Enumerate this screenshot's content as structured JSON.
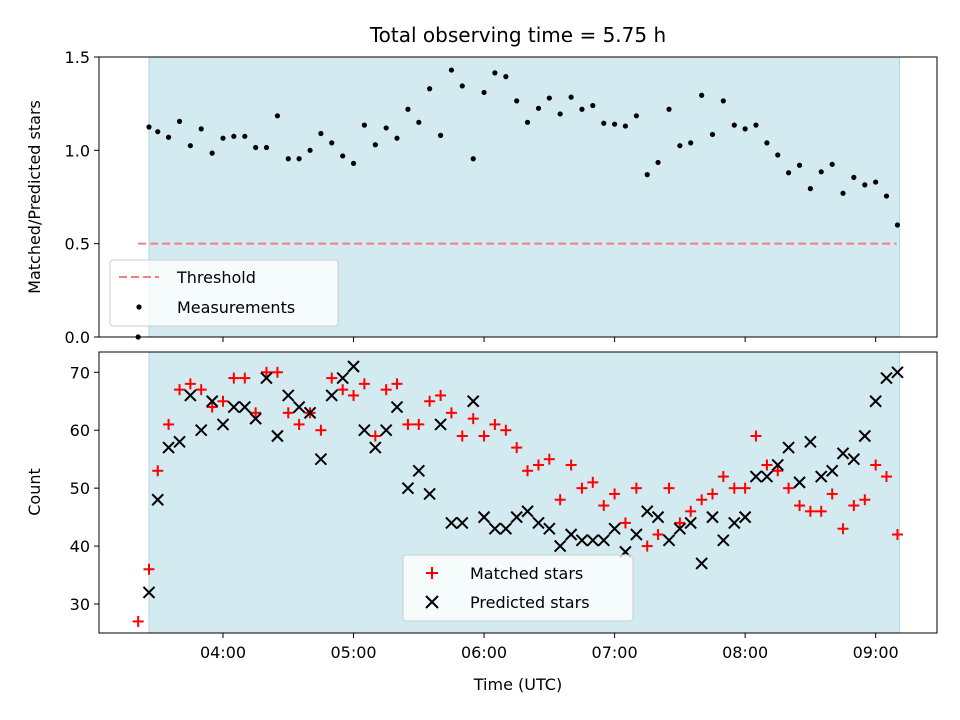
{
  "chart_data": [
    {
      "type": "scatter",
      "title": "Total observing time = 5.75 h",
      "xlabel": "",
      "ylabel": "Matched/Predicted stars",
      "ylim": [
        0,
        1.5
      ],
      "y_ticks": [
        "0.0",
        "0.5",
        "1.0",
        "1.5"
      ],
      "x_range_hours": [
        3.05,
        9.47
      ],
      "observing_window_hours": [
        3.433,
        9.183
      ],
      "shade_color": "#d3eaf1",
      "legend_position": "lower-left",
      "series": [
        {
          "name": "Threshold",
          "kind": "hline",
          "y": 0.5,
          "x_start_hours": 3.35,
          "x_end_hours": 9.16,
          "color": "#f08080",
          "style": "dashed"
        },
        {
          "name": "Measurements",
          "kind": "points",
          "color": "#000000",
          "x_hours": [
            3.35,
            3.433,
            3.5,
            3.583,
            3.667,
            3.75,
            3.833,
            3.917,
            4.0,
            4.083,
            4.167,
            4.25,
            4.333,
            4.417,
            4.5,
            4.583,
            4.667,
            4.75,
            4.833,
            4.917,
            5.0,
            5.083,
            5.167,
            5.25,
            5.333,
            5.417,
            5.5,
            5.583,
            5.667,
            5.75,
            5.833,
            5.917,
            6.0,
            6.083,
            6.167,
            6.25,
            6.333,
            6.417,
            6.5,
            6.583,
            6.667,
            6.75,
            6.833,
            6.917,
            7.0,
            7.083,
            7.167,
            7.25,
            7.333,
            7.417,
            7.5,
            7.583,
            7.667,
            7.75,
            7.833,
            7.917,
            8.0,
            8.083,
            8.167,
            8.25,
            8.333,
            8.417,
            8.5,
            8.583,
            8.667,
            8.75,
            8.833,
            8.917,
            9.0,
            9.083,
            9.167
          ],
          "y": [
            0.0,
            1.125,
            1.1,
            1.07,
            1.155,
            1.025,
            1.115,
            0.985,
            1.065,
            1.075,
            1.075,
            1.015,
            1.015,
            1.185,
            0.955,
            0.955,
            1.0,
            1.09,
            1.04,
            0.97,
            0.93,
            1.135,
            1.03,
            1.12,
            1.065,
            1.22,
            1.15,
            1.33,
            1.08,
            1.43,
            1.345,
            0.955,
            1.31,
            1.415,
            1.395,
            1.265,
            1.15,
            1.225,
            1.28,
            1.195,
            1.285,
            1.22,
            1.24,
            1.145,
            1.14,
            1.13,
            1.185,
            0.87,
            0.935,
            1.22,
            1.025,
            1.04,
            1.295,
            1.085,
            1.265,
            1.135,
            1.115,
            1.135,
            1.04,
            0.975,
            0.88,
            0.92,
            0.795,
            0.885,
            0.925,
            0.77,
            0.855,
            0.815,
            0.83,
            0.755,
            0.6
          ]
        }
      ]
    },
    {
      "type": "scatter",
      "title": "",
      "xlabel": "Time (UTC)",
      "ylabel": "Count",
      "ylim": [
        25,
        73.5
      ],
      "y_ticks": [
        "30",
        "40",
        "50",
        "60",
        "70"
      ],
      "x_ticks": [
        "04:00",
        "05:00",
        "06:00",
        "07:00",
        "08:00",
        "09:00"
      ],
      "legend_position": "lower-center",
      "series": [
        {
          "name": "Matched stars",
          "marker": "plus",
          "color": "#ff0000",
          "x_hours": [
            3.35,
            3.433,
            3.5,
            3.583,
            3.667,
            3.75,
            3.833,
            3.917,
            4.0,
            4.083,
            4.167,
            4.25,
            4.333,
            4.417,
            4.5,
            4.583,
            4.667,
            4.75,
            4.833,
            4.917,
            5.0,
            5.083,
            5.167,
            5.25,
            5.333,
            5.417,
            5.5,
            5.583,
            5.667,
            5.75,
            5.833,
            5.917,
            6.0,
            6.083,
            6.167,
            6.25,
            6.333,
            6.417,
            6.5,
            6.583,
            6.667,
            6.75,
            6.833,
            6.917,
            7.0,
            7.083,
            7.167,
            7.25,
            7.333,
            7.417,
            7.5,
            7.583,
            7.667,
            7.75,
            7.833,
            7.917,
            8.0,
            8.083,
            8.167,
            8.25,
            8.333,
            8.417,
            8.5,
            8.583,
            8.667,
            8.75,
            8.833,
            8.917,
            9.0,
            9.083,
            9.167
          ],
          "y": [
            27,
            36,
            53,
            61,
            67,
            68,
            67,
            64,
            65,
            69,
            69,
            63,
            70,
            70,
            63,
            61,
            63,
            60,
            69,
            67,
            66,
            68,
            59,
            67,
            68,
            61,
            61,
            65,
            66,
            63,
            59,
            62,
            59,
            61,
            60,
            57,
            53,
            54,
            55,
            48,
            54,
            50,
            51,
            47,
            49,
            44,
            50,
            40,
            42,
            50,
            44,
            46,
            48,
            49,
            52,
            50,
            50,
            59,
            54,
            53,
            50,
            47,
            46,
            46,
            49,
            43,
            47,
            48,
            54,
            52,
            42
          ]
        },
        {
          "name": "Predicted stars",
          "marker": "x",
          "color": "#000000",
          "x_hours": [
            3.433,
            3.5,
            3.583,
            3.667,
            3.75,
            3.833,
            3.917,
            4.0,
            4.083,
            4.167,
            4.25,
            4.333,
            4.417,
            4.5,
            4.583,
            4.667,
            4.75,
            4.833,
            4.917,
            5.0,
            5.083,
            5.167,
            5.25,
            5.333,
            5.417,
            5.5,
            5.583,
            5.667,
            5.75,
            5.833,
            5.917,
            6.0,
            6.083,
            6.167,
            6.25,
            6.333,
            6.417,
            6.5,
            6.583,
            6.667,
            6.75,
            6.833,
            6.917,
            7.0,
            7.083,
            7.167,
            7.25,
            7.333,
            7.417,
            7.5,
            7.583,
            7.667,
            7.75,
            7.833,
            7.917,
            8.0,
            8.083,
            8.167,
            8.25,
            8.333,
            8.417,
            8.5,
            8.583,
            8.667,
            8.75,
            8.833,
            8.917,
            9.0,
            9.083,
            9.167
          ],
          "y": [
            32,
            48,
            57,
            58,
            66,
            60,
            65,
            61,
            64,
            64,
            62,
            69,
            59,
            66,
            64,
            63,
            55,
            66,
            69,
            71,
            60,
            57,
            60,
            64,
            50,
            53,
            49,
            61,
            44,
            44,
            65,
            45,
            43,
            43,
            45,
            46,
            44,
            43,
            40,
            42,
            41,
            41,
            41,
            43,
            39,
            42,
            46,
            45,
            41,
            43,
            44,
            37,
            45,
            41,
            44,
            45,
            52,
            52,
            54,
            57,
            51,
            58,
            52,
            53,
            56,
            55,
            59,
            65,
            69,
            70
          ]
        }
      ]
    }
  ]
}
